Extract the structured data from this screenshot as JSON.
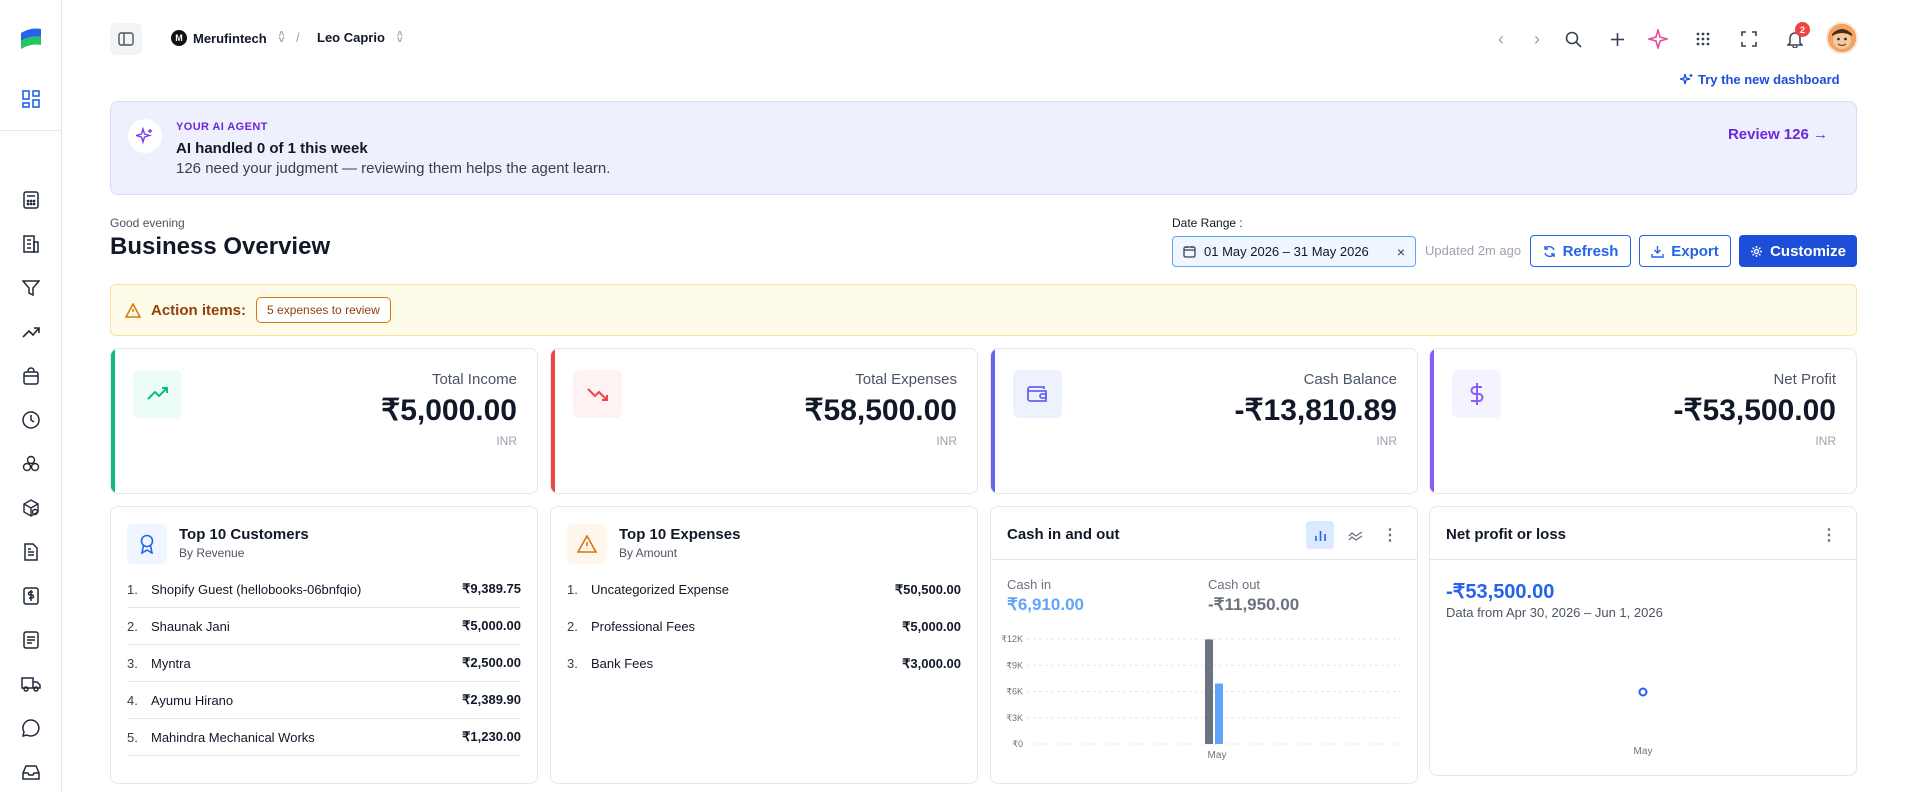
{
  "topbar": {
    "org_initial": "M",
    "org_name": "Merufintech",
    "separator": "/",
    "user_name": "Leo Caprio",
    "notification_count": "2"
  },
  "try_new_dashboard": "Try the new dashboard",
  "ai_agent": {
    "kicker": "YOUR AI AGENT",
    "title": "AI handled 0 of 1 this week",
    "subtitle": "126 need your judgment — reviewing them helps the agent learn.",
    "review_label": "Review 126 →"
  },
  "header": {
    "greeting": "Good evening",
    "title": "Business Overview",
    "date_range_label": "Date Range :",
    "date_range_value": "01 May 2026 – 31 May 2026",
    "clear": "×",
    "updated": "Updated 2m ago",
    "refresh": "Refresh",
    "export": "Export",
    "customize": "Customize"
  },
  "action_items": {
    "label": "Action items:",
    "pill": "5 expenses to review"
  },
  "kpis": [
    {
      "label": "Total Income",
      "value": "₹5,000.00",
      "currency": "INR",
      "color": "#10b981"
    },
    {
      "label": "Total Expenses",
      "value": "₹58,500.00",
      "currency": "INR",
      "color": "#ef4444"
    },
    {
      "label": "Cash Balance",
      "value": "-₹13,810.89",
      "currency": "INR",
      "color": "#6366f1"
    },
    {
      "label": "Net Profit",
      "value": "-₹53,500.00",
      "currency": "INR",
      "color": "#8b5cf6"
    }
  ],
  "top_customers": {
    "title": "Top 10 Customers",
    "subtitle": "By Revenue",
    "rows": [
      {
        "n": "1.",
        "name": "Shopify Guest (hellobooks-06bnfqio)",
        "value": "₹9,389.75"
      },
      {
        "n": "2.",
        "name": "Shaunak Jani",
        "value": "₹5,000.00"
      },
      {
        "n": "3.",
        "name": "Myntra",
        "value": "₹2,500.00"
      },
      {
        "n": "4.",
        "name": "Ayumu Hirano",
        "value": "₹2,389.90"
      },
      {
        "n": "5.",
        "name": "Mahindra Mechanical Works",
        "value": "₹1,230.00"
      }
    ]
  },
  "top_expenses": {
    "title": "Top 10 Expenses",
    "subtitle": "By Amount",
    "rows": [
      {
        "n": "1.",
        "name": "Uncategorized Expense",
        "value": "₹50,500.00"
      },
      {
        "n": "2.",
        "name": "Professional Fees",
        "value": "₹5,000.00"
      },
      {
        "n": "3.",
        "name": "Bank Fees",
        "value": "₹3,000.00"
      }
    ]
  },
  "cash_chart": {
    "title": "Cash in and out",
    "cash_in_label": "Cash in",
    "cash_in_value": "₹6,910.00",
    "cash_out_label": "Cash out",
    "cash_out_value": "-₹11,950.00"
  },
  "net_profit": {
    "title": "Net profit or loss",
    "value": "-₹53,500.00",
    "range": "Data from Apr 30, 2026 – Jun 1, 2026"
  },
  "chart_data": [
    {
      "type": "bar",
      "title": "Cash in and out",
      "categories": [
        "May"
      ],
      "series": [
        {
          "name": "Cash out",
          "values": [
            11950
          ],
          "color": "#6b7280"
        },
        {
          "name": "Cash in",
          "values": [
            6910
          ],
          "color": "#60a5fa"
        }
      ],
      "yticks": [
        "₹0",
        "₹3K",
        "₹6K",
        "₹9K",
        "₹12K"
      ],
      "ylim": [
        0,
        12000
      ],
      "grid": true
    },
    {
      "type": "line",
      "title": "Net profit or loss",
      "categories": [
        "May"
      ],
      "series": [
        {
          "name": "Net profit or loss",
          "values": [
            -53500
          ],
          "color": "#2563eb"
        }
      ]
    }
  ]
}
